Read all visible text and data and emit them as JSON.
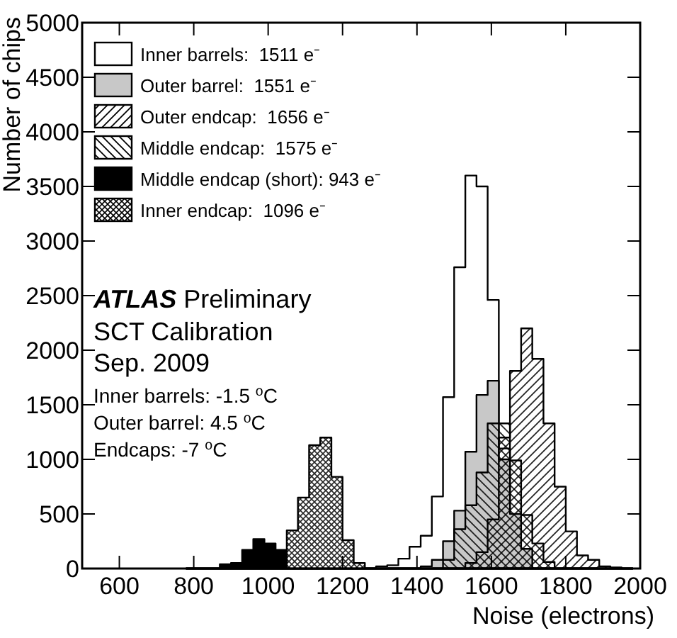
{
  "chart_data": {
    "type": "histogram",
    "xlabel": "Noise (electrons)",
    "ylabel": "Number of chips",
    "bins": [
      780,
      810,
      840,
      870,
      900,
      930,
      960,
      990,
      1020,
      1050,
      1080,
      1110,
      1140,
      1170,
      1200,
      1230,
      1260,
      1290,
      1320,
      1350,
      1380,
      1410,
      1440,
      1470,
      1500,
      1530,
      1560,
      1590,
      1620,
      1650,
      1680,
      1710,
      1740,
      1770,
      1800,
      1830,
      1860,
      1890,
      1920,
      1950,
      1980
    ],
    "series": [
      {
        "name": "Inner barrels:  1511 e⁻",
        "color": "#ffffff",
        "values": [
          0,
          0,
          0,
          0,
          0,
          0,
          0,
          0,
          0,
          0,
          0,
          0,
          0,
          0,
          0,
          0,
          0,
          20,
          30,
          90,
          200,
          300,
          660,
          1570,
          2760,
          3600,
          3500,
          2460,
          1100,
          null,
          null,
          null,
          null,
          0,
          0,
          0,
          0,
          0,
          0,
          0
        ]
      },
      {
        "name": "Outer barrel:  1551 e⁻",
        "color": "#c8c8c8",
        "values": [
          0,
          0,
          0,
          0,
          0,
          0,
          0,
          0,
          0,
          0,
          0,
          0,
          0,
          0,
          0,
          0,
          0,
          0,
          0,
          0,
          0,
          20,
          80,
          250,
          530,
          1070,
          1590,
          1720,
          1000,
          500,
          180,
          null,
          null,
          0,
          0,
          0,
          0,
          0,
          0,
          0
        ]
      },
      {
        "name": "Outer endcap:  1656 e⁻",
        "color": "#000000",
        "values": [
          0,
          0,
          0,
          0,
          0,
          0,
          0,
          0,
          0,
          0,
          0,
          0,
          0,
          0,
          0,
          0,
          0,
          0,
          0,
          0,
          0,
          0,
          0,
          0,
          0,
          50,
          150,
          450,
          1200,
          1810,
          2200,
          1920,
          1330,
          750,
          340,
          120,
          80,
          20,
          10,
          0
        ]
      },
      {
        "name": "Middle endcap:  1575 e⁻",
        "color": "#000000",
        "values": [
          0,
          0,
          0,
          0,
          0,
          0,
          0,
          0,
          0,
          0,
          0,
          0,
          0,
          0,
          0,
          0,
          0,
          0,
          0,
          0,
          0,
          0,
          null,
          80,
          360,
          580,
          880,
          1330,
          1330,
          990,
          490,
          230,
          60,
          0,
          0,
          0,
          0,
          0,
          0,
          0
        ]
      },
      {
        "name": "Middle endcap (short): 943 e⁻",
        "color": "#000000",
        "values": [
          0,
          0,
          0,
          40,
          50,
          170,
          270,
          230,
          170,
          0,
          0,
          0,
          0,
          0,
          0,
          0,
          0,
          0,
          0,
          0,
          0,
          0,
          0,
          0,
          0,
          0,
          0,
          0,
          0,
          0,
          0,
          0,
          0,
          0,
          0,
          0,
          0,
          0,
          0,
          0
        ]
      },
      {
        "name": "Inner endcap:  1096 e⁻",
        "color": "#000000",
        "values": [
          0,
          0,
          0,
          0,
          0,
          0,
          0,
          0,
          0,
          350,
          650,
          1130,
          1200,
          840,
          260,
          50,
          0,
          0,
          0,
          0,
          0,
          0,
          0,
          0,
          0,
          0,
          0,
          0,
          0,
          0,
          0,
          0,
          0,
          0,
          0,
          0,
          0,
          0,
          0,
          0
        ]
      }
    ],
    "xlim": [
      500,
      2000
    ],
    "xticks": [
      600,
      800,
      1000,
      1200,
      1400,
      1600,
      1800,
      2000
    ],
    "ylim": [
      0,
      5000
    ],
    "yticks": [
      0,
      500,
      1000,
      1500,
      2000,
      2500,
      3000,
      3500,
      4000,
      4500,
      5000
    ],
    "grid": false,
    "legend": "top left",
    "annotations": [
      "ATLAS Preliminary",
      "SCT Calibration",
      "Sep. 2009",
      "Inner barrels: -1.5 $^{o}$C",
      "Outer barrel: 4.5 $^{o}$C",
      "Endcaps: -7 $^{o}$C"
    ]
  }
}
